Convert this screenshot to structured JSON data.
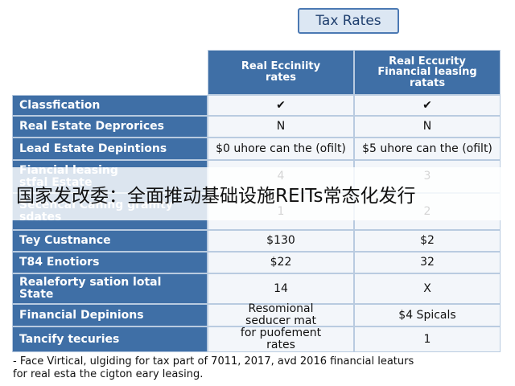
{
  "title": "Tax Rates",
  "table": {
    "header": [
      "Real Ecciniity\nrates",
      "Real Eccurity\nFinancial leasing\nratats"
    ],
    "rows": [
      [
        "Classfication",
        "✔",
        "✔"
      ],
      [
        "Real Estate Deprorices",
        "N",
        "N"
      ],
      [
        "Lead Estate Depintions",
        "$0 uhore can the (ofilt)",
        "$5 uhore can the (ofilt)"
      ],
      [
        "Fiancial leasing\nstfal Estate",
        "4",
        "3"
      ],
      [
        "Secencal Caning gramty\nsdates",
        "1",
        "2"
      ],
      [
        "Tey Custnance",
        "$130",
        "$2"
      ],
      [
        "T84 Enotiors",
        "$22",
        "32"
      ],
      [
        "Realeforty sation lotal\nState",
        "14",
        "X"
      ],
      [
        "Financial Depinions",
        "Resomional\nseducer mat",
        "$4 Spicals"
      ],
      [
        "Tancify tecuries",
        "for puofement\nrates",
        "1"
      ]
    ]
  },
  "footnote": "- Face Virtical, ulgiding for tax part of 7011, 2017, avd 2016 financial leaturs\nfor real esta the cigton eary leasing.",
  "banner": "国家发改委：全面推动基础设施REITs常态化发行"
}
